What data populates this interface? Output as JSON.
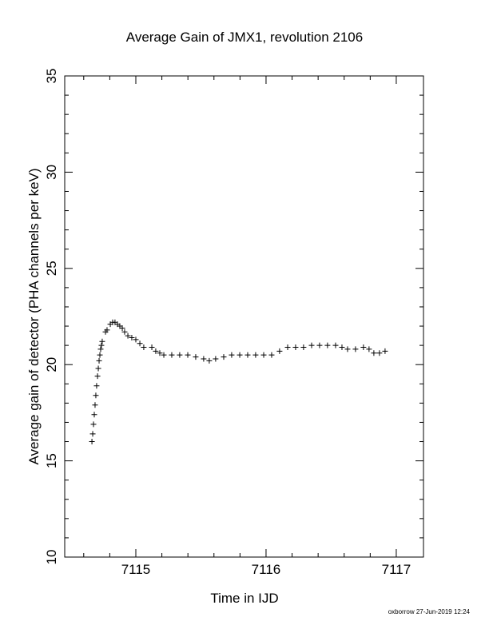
{
  "chart_data": {
    "type": "scatter",
    "title": "Average Gain of JMX1, revolution 2106",
    "xlabel": "Time in IJD",
    "ylabel": "Average gain of detector (PHA channels per keV)",
    "footer": "oxborrow 27-Jun-2019 12:24",
    "marker": "+",
    "color": "#000000",
    "xlim": [
      7114.454,
      7117.209
    ],
    "ylim": [
      10,
      35
    ],
    "xticks": [
      7115,
      7116,
      7117
    ],
    "yticks": [
      10,
      15,
      20,
      25,
      30,
      35
    ],
    "xminorticks": [
      7114.6,
      7114.8,
      7115.2,
      7115.4,
      7115.6,
      7115.8,
      7116.2,
      7116.4,
      7116.6,
      7116.8
    ],
    "yminorticks": [
      11,
      12,
      13,
      14,
      16,
      17,
      18,
      19,
      21,
      22,
      23,
      24,
      26,
      27,
      28,
      29,
      31,
      32,
      33,
      34
    ],
    "x": [
      7114.663,
      7114.669,
      7114.675,
      7114.681,
      7114.687,
      7114.693,
      7114.699,
      7114.706,
      7114.712,
      7114.718,
      7114.724,
      7114.73,
      7114.736,
      7114.742,
      7114.767,
      7114.779,
      7114.804,
      7114.822,
      7114.84,
      7114.859,
      7114.877,
      7114.896,
      7114.914,
      7114.939,
      7114.969,
      7115.0,
      7115.031,
      7115.061,
      7115.123,
      7115.153,
      7115.184,
      7115.215,
      7115.276,
      7115.337,
      7115.399,
      7115.46,
      7115.521,
      7115.564,
      7115.613,
      7115.675,
      7115.736,
      7115.798,
      7115.859,
      7115.92,
      7115.982,
      7116.043,
      7116.104,
      7116.166,
      7116.227,
      7116.288,
      7116.35,
      7116.411,
      7116.472,
      7116.534,
      7116.583,
      7116.626,
      7116.687,
      7116.748,
      7116.791,
      7116.828,
      7116.871,
      7116.914
    ],
    "values": [
      16.0,
      16.4,
      16.9,
      17.4,
      17.9,
      18.4,
      18.9,
      19.4,
      19.8,
      20.2,
      20.5,
      20.8,
      21.0,
      21.2,
      21.7,
      21.8,
      22.1,
      22.2,
      22.2,
      22.1,
      22.0,
      21.9,
      21.7,
      21.5,
      21.4,
      21.3,
      21.1,
      20.9,
      20.9,
      20.7,
      20.6,
      20.5,
      20.5,
      20.5,
      20.5,
      20.4,
      20.3,
      20.2,
      20.3,
      20.4,
      20.5,
      20.5,
      20.5,
      20.5,
      20.5,
      20.5,
      20.7,
      20.9,
      20.9,
      20.9,
      21.0,
      21.0,
      21.0,
      21.0,
      20.9,
      20.8,
      20.8,
      20.9,
      20.8,
      20.6,
      20.6,
      20.7
    ]
  }
}
